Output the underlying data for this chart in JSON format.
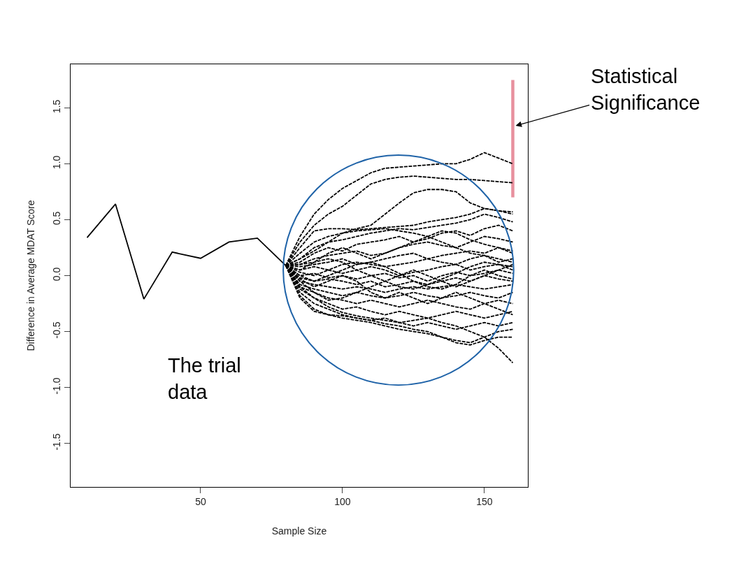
{
  "chart_data": {
    "type": "line",
    "xlabel": "Sample Size",
    "ylabel": "Difference in Average MDAT Score",
    "xlim": [
      4.2,
      165.3
    ],
    "ylim": [
      -1.89,
      1.89
    ],
    "xticks": [
      50,
      100,
      150
    ],
    "yticks": [
      -1.5,
      {
        "value": -1,
        "label": "-1.0"
      },
      -0.5,
      {
        "value": 0,
        "label": "0.0"
      },
      0.5,
      {
        "value": 1,
        "label": "1.0"
      },
      1.5
    ],
    "marker": "none",
    "annotations": [
      {
        "text": "Statistical\nSignificance",
        "x": 161,
        "y": 1.34
      },
      "The trial\ndata"
    ],
    "x": [
      80,
      85,
      90,
      95,
      100,
      105,
      110,
      115,
      120,
      125,
      130,
      135,
      140,
      145,
      150,
      155,
      160
    ],
    "series": [
      {
        "color": "#000000",
        "line_style": "solid",
        "x": [
          10,
          20,
          30,
          40,
          50,
          60,
          70,
          80
        ],
        "values": [
          0.34,
          0.64,
          -0.21,
          0.21,
          0.155,
          0.3,
          0.335,
          0.09
        ]
      },
      {
        "color": "#e8909e",
        "line_style": "solid",
        "x": [
          160,
          160
        ],
        "values": [
          0.7,
          1.75
        ]
      },
      {
        "color": "#000000",
        "line_style": "dashed",
        "values": [
          0.09,
          0.35,
          0.55,
          0.68,
          0.78,
          0.85,
          0.92,
          0.96,
          0.97,
          0.98,
          0.99,
          1.0,
          1.0,
          1.04,
          1.1,
          1.05,
          1.0
        ]
      },
      {
        "color": "#000000",
        "line_style": "dashed",
        "values": [
          0.09,
          0.3,
          0.45,
          0.55,
          0.62,
          0.72,
          0.82,
          0.86,
          0.88,
          0.89,
          0.88,
          0.87,
          0.86,
          0.86,
          0.85,
          0.84,
          0.83
        ]
      },
      {
        "color": "#000000",
        "line_style": "dashed",
        "values": [
          0.09,
          0.2,
          0.3,
          0.35,
          0.38,
          0.42,
          0.45,
          0.55,
          0.65,
          0.74,
          0.77,
          0.77,
          0.75,
          0.65,
          0.6,
          0.58,
          0.55
        ]
      },
      {
        "color": "#000000",
        "line_style": "dashed",
        "values": [
          0.09,
          0.25,
          0.4,
          0.42,
          0.42,
          0.41,
          0.42,
          0.43,
          0.44,
          0.45,
          0.48,
          0.5,
          0.52,
          0.55,
          0.6,
          0.58,
          0.57
        ]
      },
      {
        "color": "#000000",
        "line_style": "dashed",
        "values": [
          0.09,
          0.15,
          0.25,
          0.3,
          0.32,
          0.35,
          0.38,
          0.4,
          0.42,
          0.41,
          0.43,
          0.45,
          0.47,
          0.5,
          0.55,
          0.52,
          0.48
        ]
      },
      {
        "color": "#000000",
        "line_style": "dashed",
        "values": [
          0.09,
          0.12,
          0.2,
          0.25,
          0.22,
          0.28,
          0.3,
          0.32,
          0.35,
          0.3,
          0.33,
          0.38,
          0.4,
          0.36,
          0.42,
          0.45,
          0.4
        ]
      },
      {
        "color": "#000000",
        "line_style": "dashed",
        "values": [
          0.09,
          0.1,
          0.15,
          0.18,
          0.2,
          0.22,
          0.18,
          0.2,
          0.25,
          0.28,
          0.3,
          0.27,
          0.25,
          0.3,
          0.35,
          0.33,
          0.3
        ]
      },
      {
        "color": "#000000",
        "line_style": "dashed",
        "values": [
          0.09,
          0.08,
          0.1,
          0.12,
          0.15,
          0.1,
          0.12,
          0.15,
          0.18,
          0.2,
          0.15,
          0.18,
          0.2,
          0.22,
          0.2,
          0.25,
          0.22
        ]
      },
      {
        "color": "#000000",
        "line_style": "dashed",
        "values": [
          0.09,
          0.05,
          0.08,
          0.05,
          0.1,
          0.12,
          0.1,
          0.08,
          0.1,
          0.12,
          0.15,
          0.12,
          0.1,
          0.15,
          0.18,
          0.12,
          0.15
        ]
      },
      {
        "color": "#000000",
        "line_style": "dashed",
        "values": [
          0.09,
          0.03,
          0.0,
          0.05,
          0.02,
          0.05,
          0.08,
          0.05,
          0.0,
          0.03,
          0.05,
          0.08,
          0.1,
          0.05,
          0.08,
          0.1,
          0.08
        ]
      },
      {
        "color": "#000000",
        "line_style": "dashed",
        "values": [
          0.09,
          0.0,
          0.02,
          -0.02,
          0.0,
          -0.03,
          0.0,
          0.02,
          -0.02,
          0.0,
          -0.05,
          0.0,
          0.03,
          0.0,
          0.02,
          0.05,
          0.02
        ]
      },
      {
        "color": "#000000",
        "line_style": "dashed",
        "values": [
          0.09,
          -0.02,
          -0.05,
          -0.03,
          -0.05,
          -0.08,
          -0.05,
          -0.1,
          -0.08,
          -0.05,
          -0.08,
          -0.05,
          -0.02,
          -0.05,
          0.0,
          -0.03,
          -0.05
        ]
      },
      {
        "color": "#000000",
        "line_style": "dashed",
        "values": [
          0.09,
          -0.05,
          -0.08,
          -0.1,
          -0.12,
          -0.1,
          -0.12,
          -0.15,
          -0.12,
          -0.1,
          -0.12,
          -0.1,
          -0.08,
          -0.1,
          -0.12,
          -0.1,
          -0.08
        ]
      },
      {
        "color": "#000000",
        "line_style": "dashed",
        "values": [
          0.09,
          -0.08,
          -0.12,
          -0.15,
          -0.18,
          -0.15,
          -0.18,
          -0.2,
          -0.18,
          -0.15,
          -0.18,
          -0.2,
          -0.18,
          -0.15,
          -0.18,
          -0.2,
          -0.15
        ]
      },
      {
        "color": "#000000",
        "line_style": "dashed",
        "values": [
          0.09,
          -0.1,
          -0.15,
          -0.2,
          -0.22,
          -0.25,
          -0.22,
          -0.25,
          -0.28,
          -0.25,
          -0.22,
          -0.25,
          -0.28,
          -0.3,
          -0.25,
          -0.22,
          -0.25
        ]
      },
      {
        "color": "#000000",
        "line_style": "dashed",
        "values": [
          0.09,
          -0.12,
          -0.2,
          -0.25,
          -0.3,
          -0.28,
          -0.32,
          -0.35,
          -0.32,
          -0.35,
          -0.38,
          -0.35,
          -0.32,
          -0.35,
          -0.38,
          -0.35,
          -0.32
        ]
      },
      {
        "color": "#000000",
        "line_style": "dashed",
        "values": [
          0.09,
          -0.15,
          -0.25,
          -0.3,
          -0.35,
          -0.38,
          -0.4,
          -0.38,
          -0.42,
          -0.45,
          -0.42,
          -0.45,
          -0.48,
          -0.45,
          -0.42,
          -0.45,
          -0.42
        ]
      },
      {
        "color": "#000000",
        "line_style": "dashed",
        "values": [
          0.09,
          -0.18,
          -0.3,
          -0.35,
          -0.38,
          -0.4,
          -0.42,
          -0.45,
          -0.48,
          -0.5,
          -0.52,
          -0.55,
          -0.58,
          -0.6,
          -0.55,
          -0.5,
          -0.48
        ]
      },
      {
        "color": "#000000",
        "line_style": "dashed",
        "values": [
          0.09,
          -0.2,
          -0.32,
          -0.35,
          -0.36,
          -0.38,
          -0.4,
          -0.43,
          -0.45,
          -0.48,
          -0.5,
          -0.55,
          -0.6,
          -0.62,
          -0.58,
          -0.55,
          -0.55
        ]
      },
      {
        "color": "#000000",
        "line_style": "dashed",
        "values": [
          0.09,
          -0.1,
          -0.2,
          -0.28,
          -0.33,
          -0.36,
          -0.38,
          -0.4,
          -0.42,
          -0.4,
          -0.38,
          -0.42,
          -0.45,
          -0.5,
          -0.55,
          -0.65,
          -0.78
        ]
      },
      {
        "color": "#000000",
        "line_style": "dashed",
        "values": [
          0.09,
          0.1,
          0.12,
          0.15,
          0.12,
          0.05,
          0.0,
          -0.05,
          -0.1,
          -0.12,
          -0.08,
          -0.03,
          0.02,
          0.08,
          0.12,
          0.1,
          0.05
        ]
      },
      {
        "color": "#000000",
        "line_style": "dashed",
        "values": [
          0.09,
          0.0,
          -0.05,
          0.0,
          0.05,
          0.1,
          0.12,
          0.08,
          0.02,
          -0.05,
          -0.1,
          -0.12,
          -0.08,
          0.0,
          0.05,
          0.0,
          -0.03
        ]
      },
      {
        "color": "#000000",
        "line_style": "dashed",
        "values": [
          0.09,
          0.05,
          0.12,
          0.2,
          0.25,
          0.2,
          0.15,
          0.2,
          0.25,
          0.3,
          0.35,
          0.4,
          0.38,
          0.32,
          0.28,
          0.25,
          0.2
        ]
      },
      {
        "color": "#000000",
        "line_style": "dashed",
        "values": [
          0.09,
          -0.03,
          -0.1,
          -0.05,
          0.0,
          -0.05,
          -0.15,
          -0.2,
          -0.15,
          -0.2,
          -0.25,
          -0.2,
          -0.15,
          -0.2,
          -0.25,
          -0.3,
          -0.35
        ]
      },
      {
        "color": "#000000",
        "line_style": "dashed",
        "values": [
          0.09,
          0.15,
          0.22,
          0.3,
          0.38,
          0.4,
          0.41,
          0.42,
          0.4,
          0.38,
          0.35,
          0.3,
          0.25,
          0.2,
          0.18,
          0.15,
          0.12
        ]
      },
      {
        "color": "#000000",
        "line_style": "dashed",
        "values": [
          0.09,
          -0.05,
          -0.15,
          -0.22,
          -0.2,
          -0.15,
          -0.1,
          -0.05,
          0.0,
          0.05,
          0.0,
          -0.05,
          -0.1,
          -0.05,
          0.0,
          0.05,
          0.1
        ]
      }
    ]
  }
}
